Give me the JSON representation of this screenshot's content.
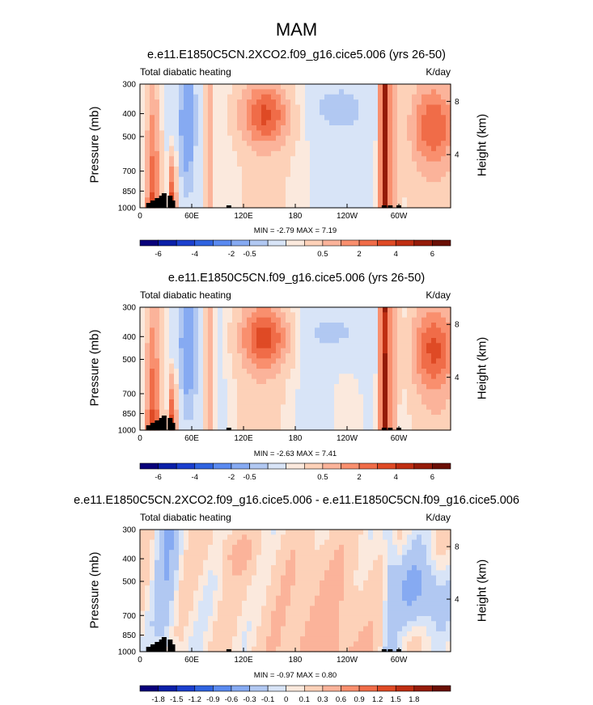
{
  "main_title": "MAM",
  "colors": {
    "abs": [
      "#08007a",
      "#0a1fa8",
      "#1b3fce",
      "#2f63e0",
      "#5a8af0",
      "#86aaf2",
      "#b1c8f2",
      "#d8e4f7",
      "#fbe9dd",
      "#fdd1b8",
      "#fbb39a",
      "#f98f6e",
      "#f06c48",
      "#df4a25",
      "#bf2e12",
      "#951b09",
      "#6a0f05"
    ],
    "diff": [
      "#08007a",
      "#0a1fa8",
      "#1b3fce",
      "#2f63e0",
      "#5a8af0",
      "#86aaf2",
      "#b1c8f2",
      "#d8e4f7",
      "#fbe9dd",
      "#fdd1b8",
      "#fbb39a",
      "#f98f6e",
      "#f06c48",
      "#df4a25",
      "#bf2e12",
      "#951b09",
      "#6a0f05"
    ]
  },
  "chart_data": [
    {
      "type": "heatmap",
      "title": "e.e11.E1850C5CN.2XCO2.f09_g16.cice5.006 (yrs 26-50)",
      "left_label": "Total diabatic heating",
      "units": "K/day",
      "ylabel": "Pressure (mb)",
      "ylabel_right": "Height (km)",
      "y_ticks": [
        "300",
        "400",
        "500",
        "700",
        "850",
        "1000"
      ],
      "y_right_ticks": [
        "8",
        "4"
      ],
      "x_ticks": [
        "0",
        "60E",
        "120E",
        "180",
        "120W",
        "60W"
      ],
      "min_max": "MIN =  -2.79  MAX =   7.19",
      "colorbar_labels": [
        "-6",
        "-4",
        "-2",
        "-0.5",
        "0.5",
        "2",
        "4",
        "6"
      ],
      "scale": "abs"
    },
    {
      "type": "heatmap",
      "title": "e.e11.E1850C5CN.f09_g16.cice5.006 (yrs 26-50)",
      "left_label": "Total diabatic heating",
      "units": "K/day",
      "ylabel": "Pressure (mb)",
      "ylabel_right": "Height (km)",
      "y_ticks": [
        "300",
        "400",
        "500",
        "700",
        "850",
        "1000"
      ],
      "y_right_ticks": [
        "8",
        "4"
      ],
      "x_ticks": [
        "0",
        "60E",
        "120E",
        "180",
        "120W",
        "60W"
      ],
      "min_max": "MIN =  -2.63  MAX =   7.41",
      "colorbar_labels": [
        "-6",
        "-4",
        "-2",
        "-0.5",
        "0.5",
        "2",
        "4",
        "6"
      ],
      "scale": "abs"
    },
    {
      "type": "heatmap",
      "title": "e.e11.E1850C5CN.2XCO2.f09_g16.cice5.006 - e.e11.E1850C5CN.f09_g16.cice5.006",
      "left_label": "Total diabatic heating",
      "units": "K/day",
      "ylabel": "Pressure (mb)",
      "ylabel_right": "Height (km)",
      "y_ticks": [
        "300",
        "400",
        "500",
        "700",
        "850",
        "1000"
      ],
      "y_right_ticks": [
        "8",
        "4"
      ],
      "x_ticks": [
        "0",
        "60E",
        "120E",
        "180",
        "120W",
        "60W"
      ],
      "min_max": "MIN =  -0.97  MAX =   0.80",
      "colorbar_labels": [
        "-1.8",
        "-1.5",
        "-1.2",
        "-0.9",
        "-0.6",
        "-0.3",
        "-0.1",
        "0",
        "0.1",
        "0.3",
        "0.6",
        "0.9",
        "1.2",
        "1.5",
        "1.8"
      ],
      "scale": "diff"
    }
  ]
}
